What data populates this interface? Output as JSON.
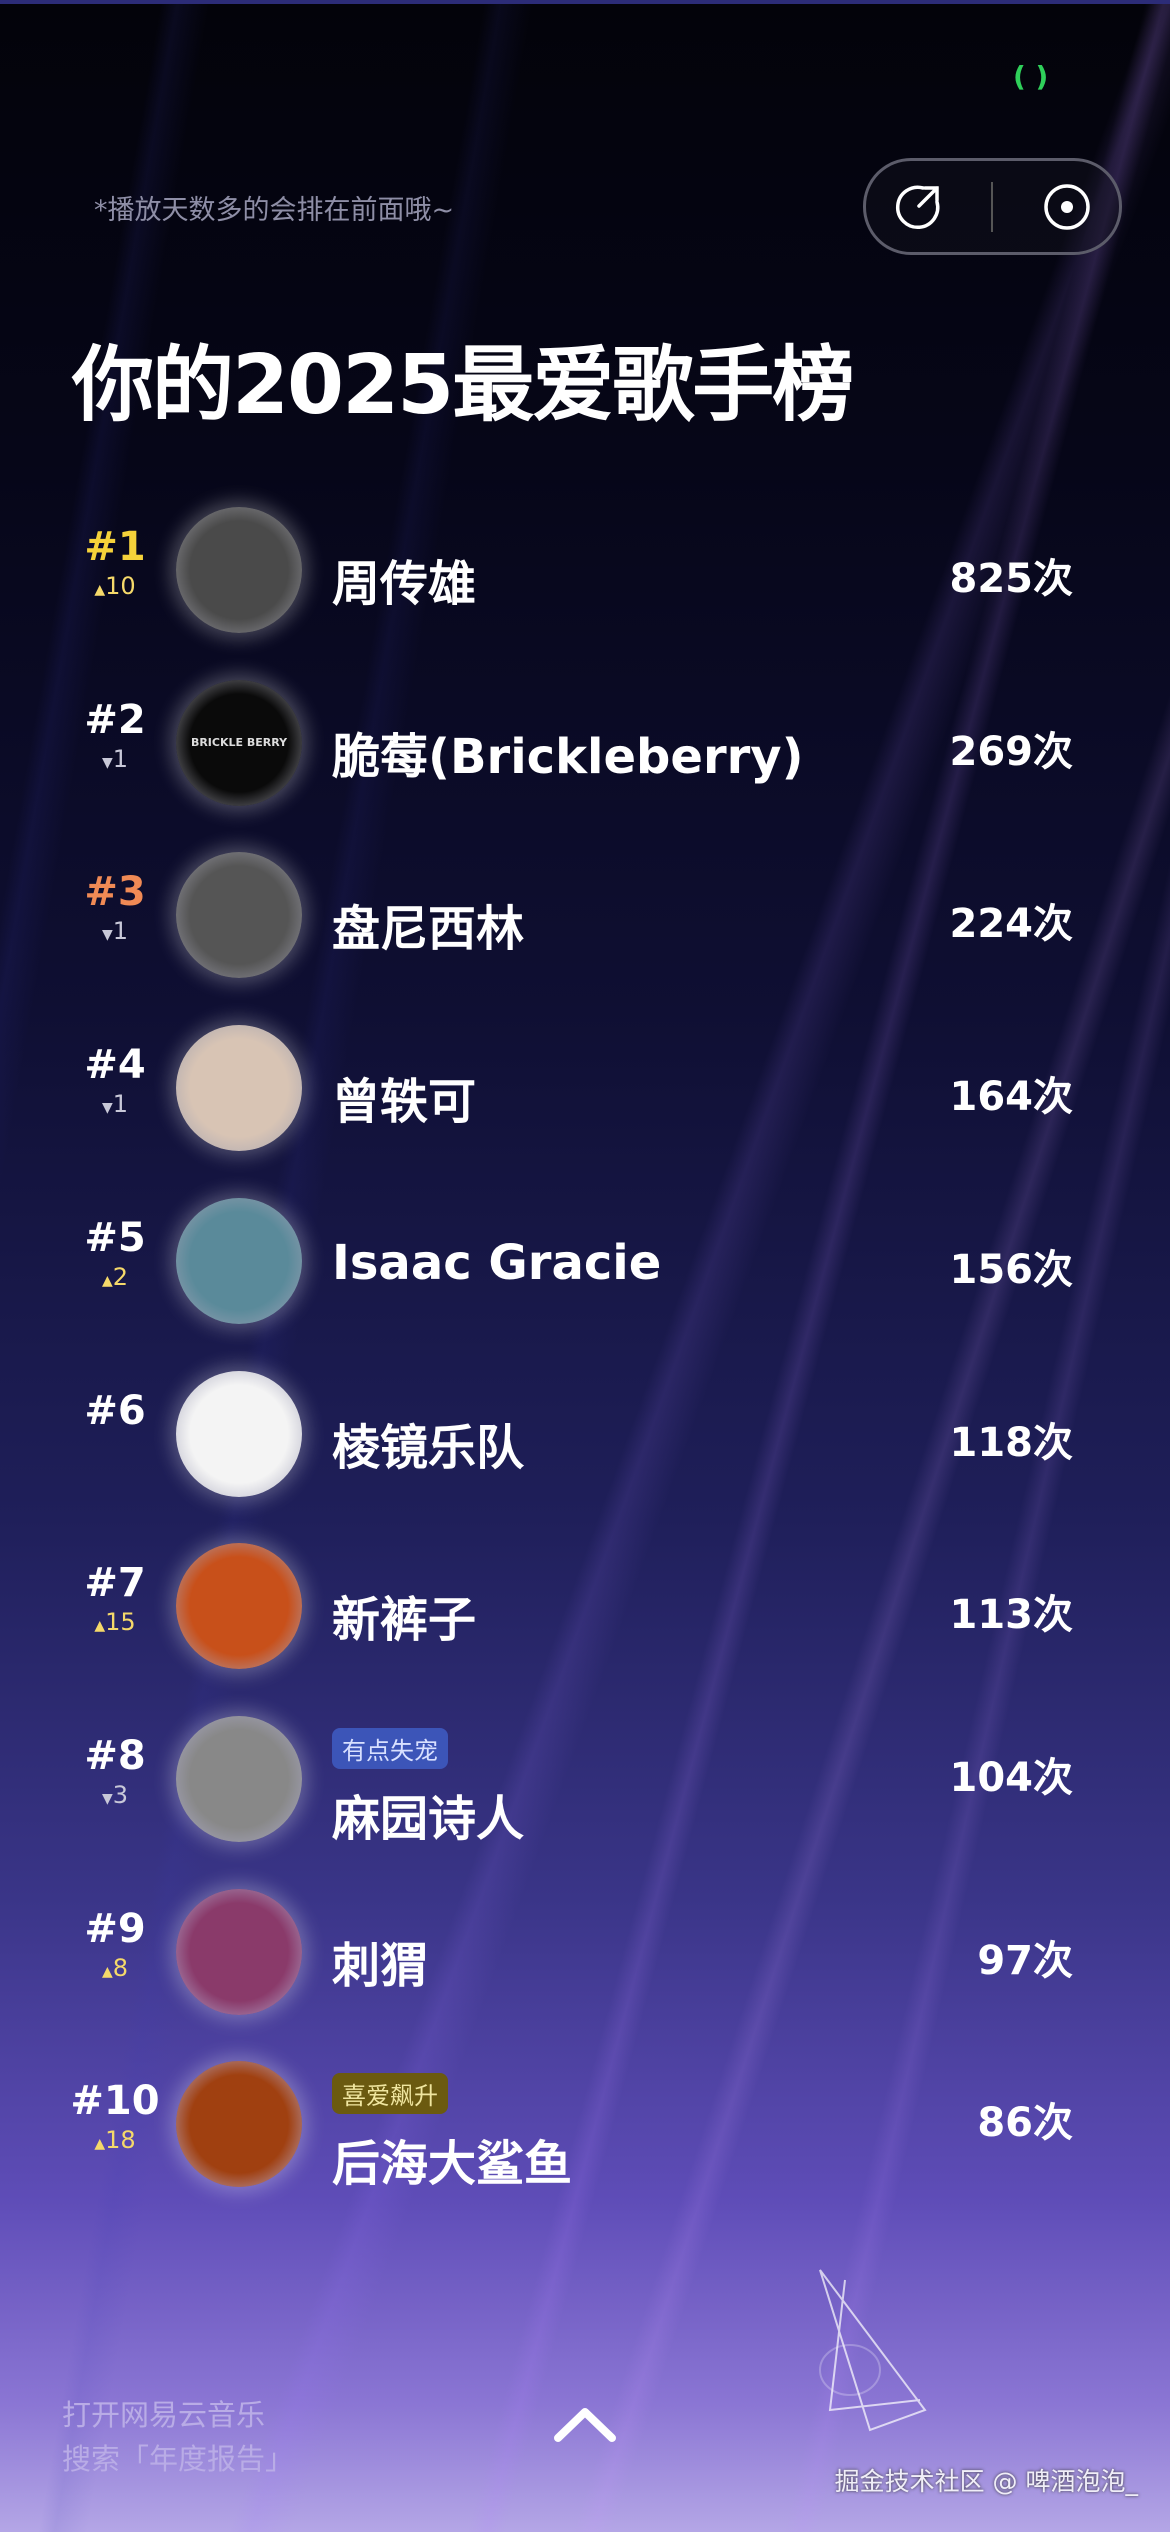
{
  "header": {
    "hint": "*播放天数多的会排在前面哦~",
    "title": "你的2025最爱歌手榜",
    "status_icon": "green-loop-icon",
    "share_icon": "share-icon",
    "record_icon": "record-icon"
  },
  "colors": {
    "rank1": "#f5d23a",
    "rank3": "#f08a55",
    "up": "#f5d96a",
    "down": "#c8c8d8",
    "badge_blue": "#3c55b8",
    "badge_gold": "#6b5a10"
  },
  "artists": [
    {
      "rank": "#1",
      "change": "10",
      "dir": "up",
      "name": "周传雄",
      "count": "825次",
      "avatar": "#4a4a4a"
    },
    {
      "rank": "#2",
      "change": "1",
      "dir": "down",
      "name": "脆莓(Brickleberry)",
      "count": "269次",
      "avatar": "#0a0a0a",
      "avatar_text": "BRICKLE BERRY"
    },
    {
      "rank": "#3",
      "change": "1",
      "dir": "down",
      "name": "盘尼西林",
      "count": "224次",
      "avatar": "#555"
    },
    {
      "rank": "#4",
      "change": "1",
      "dir": "down",
      "name": "曾轶可",
      "count": "164次",
      "avatar": "#d8c4b4"
    },
    {
      "rank": "#5",
      "change": "2",
      "dir": "up",
      "name": "Isaac Gracie",
      "count": "156次",
      "avatar": "#5a8a9a"
    },
    {
      "rank": "#6",
      "change": "",
      "dir": "",
      "name": "棱镜乐队",
      "count": "118次",
      "avatar": "#f4f4f4"
    },
    {
      "rank": "#7",
      "change": "15",
      "dir": "up",
      "name": "新裤子",
      "count": "113次",
      "avatar": "#c8501a"
    },
    {
      "rank": "#8",
      "change": "3",
      "dir": "down",
      "name": "麻园诗人",
      "count": "104次",
      "avatar": "#888",
      "badge": "有点失宠"
    },
    {
      "rank": "#9",
      "change": "8",
      "dir": "up",
      "name": "刺猬",
      "count": "97次",
      "avatar": "#8a3a6a"
    },
    {
      "rank": "#10",
      "change": "18",
      "dir": "up",
      "name": "后海大鲨鱼",
      "count": "86次",
      "avatar": "#a04010",
      "badge": "喜爱飙升"
    }
  ],
  "footer": {
    "line1": "打开网易云音乐",
    "line2": "搜索「年度报告」",
    "watermark": "掘金技术社区 @ 啤酒泡泡_",
    "chevron_icon": "chevron-up-icon"
  }
}
